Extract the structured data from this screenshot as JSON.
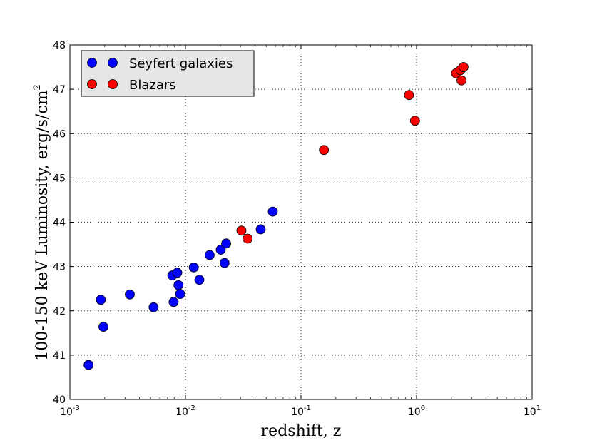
{
  "chart_data": {
    "type": "scatter",
    "title": "",
    "xlabel": "redshift, z",
    "ylabel": "100-150 keV Luminosity, erg/s/cm",
    "ylabel_superscript": "2",
    "x_scale": "log",
    "xlim": [
      0.001,
      10
    ],
    "ylim": [
      40,
      48
    ],
    "x_ticks": [
      {
        "value": 0.001,
        "base": "10",
        "exp": "-3"
      },
      {
        "value": 0.01,
        "base": "10",
        "exp": "-2"
      },
      {
        "value": 0.1,
        "base": "10",
        "exp": "-1"
      },
      {
        "value": 1,
        "base": "10",
        "exp": "0"
      },
      {
        "value": 10,
        "base": "10",
        "exp": "1"
      }
    ],
    "y_ticks": [
      40,
      41,
      42,
      43,
      44,
      45,
      46,
      47,
      48
    ],
    "grid": true,
    "legend_position": "top-left",
    "series": [
      {
        "name": "Seyfert galaxies",
        "color": "#0000ff",
        "points": [
          {
            "x": 0.00145,
            "y": 40.78
          },
          {
            "x": 0.00185,
            "y": 42.25
          },
          {
            "x": 0.00195,
            "y": 41.64
          },
          {
            "x": 0.0033,
            "y": 42.37
          },
          {
            "x": 0.0053,
            "y": 42.08
          },
          {
            "x": 0.0077,
            "y": 42.8
          },
          {
            "x": 0.0079,
            "y": 42.2
          },
          {
            "x": 0.0085,
            "y": 42.86
          },
          {
            "x": 0.0087,
            "y": 42.58
          },
          {
            "x": 0.009,
            "y": 42.38
          },
          {
            "x": 0.0118,
            "y": 42.98
          },
          {
            "x": 0.0132,
            "y": 42.7
          },
          {
            "x": 0.0162,
            "y": 43.26
          },
          {
            "x": 0.0202,
            "y": 43.38
          },
          {
            "x": 0.0218,
            "y": 43.08
          },
          {
            "x": 0.0225,
            "y": 43.52
          },
          {
            "x": 0.0448,
            "y": 43.84
          },
          {
            "x": 0.057,
            "y": 44.24
          }
        ]
      },
      {
        "name": "Blazars",
        "color": "#ff0000",
        "points": [
          {
            "x": 0.0305,
            "y": 43.81
          },
          {
            "x": 0.0345,
            "y": 43.63
          },
          {
            "x": 0.158,
            "y": 45.63
          },
          {
            "x": 0.86,
            "y": 46.87
          },
          {
            "x": 0.97,
            "y": 46.29
          },
          {
            "x": 2.2,
            "y": 47.36
          },
          {
            "x": 2.4,
            "y": 47.43
          },
          {
            "x": 2.45,
            "y": 47.2
          },
          {
            "x": 2.55,
            "y": 47.5
          }
        ]
      }
    ]
  }
}
